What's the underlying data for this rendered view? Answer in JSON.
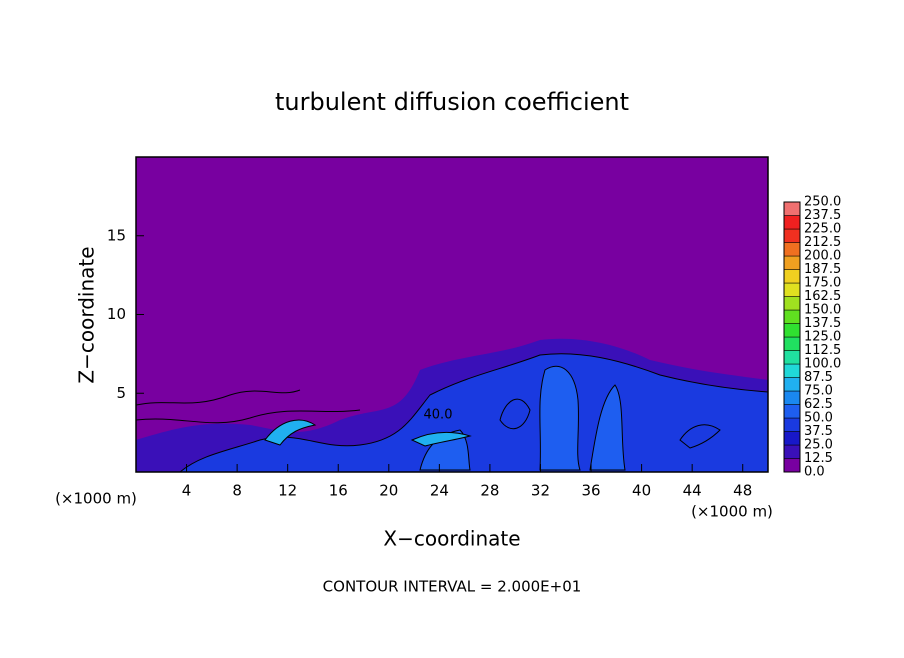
{
  "chart_data": {
    "type": "contour",
    "title": "turbulent diffusion coefficient",
    "xlabel": "X−coordinate",
    "ylabel": "Z−coordinate",
    "x_unit": "(×1000 m)",
    "y_unit": "(×1000 m)",
    "footer": "CONTOUR INTERVAL = 2.000E+01",
    "annotations": [
      "40.0"
    ],
    "xlim": [
      0,
      50
    ],
    "xticks": [
      4,
      8,
      12,
      16,
      20,
      24,
      28,
      32,
      36,
      40,
      44,
      48
    ],
    "ylim": [
      0,
      20
    ],
    "yticks": [
      5,
      10,
      15
    ],
    "colorbar": {
      "levels": [
        {
          "value": 0,
          "label": "0.0"
        },
        12.5,
        {
          "value": 25,
          "label": "25.0"
        },
        37.5,
        {
          "value": 50,
          "label": "50.0"
        },
        62.5,
        {
          "value": 75,
          "label": "75.0"
        },
        87.5,
        {
          "value": 100,
          "label": "100.0"
        },
        112.5,
        {
          "value": 125,
          "label": "125.0"
        },
        137.5,
        {
          "value": 150,
          "label": "150.0"
        },
        162.5,
        {
          "value": 175,
          "label": "175.0"
        },
        187.5,
        {
          "value": 200,
          "label": "200.0"
        },
        212.5,
        {
          "value": 225,
          "label": "225.0"
        },
        237.5,
        {
          "value": 250,
          "label": "250.0"
        }
      ],
      "colors": [
        "#7800a0",
        "#3a10b8",
        "#1818c8",
        "#1a3ae0",
        "#1e5ef0",
        "#1a88f0",
        "#20b0f0",
        "#20d8d8",
        "#20e0a0",
        "#20e060",
        "#30e030",
        "#60e020",
        "#a0e020",
        "#e0e020",
        "#f0d020",
        "#f0a020",
        "#f07020",
        "#f03020",
        "#f02020",
        "#f07070"
      ]
    }
  }
}
